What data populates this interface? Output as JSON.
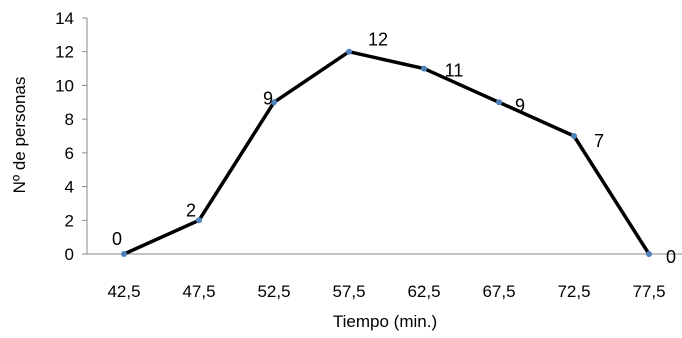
{
  "chart_data": {
    "type": "line",
    "title": "",
    "xlabel": "Tiempo (min.)",
    "ylabel": "Nº de personas",
    "categories": [
      "42,5",
      "47,5",
      "52,5",
      "57,5",
      "62,5",
      "67,5",
      "72,5",
      "77,5"
    ],
    "series": [
      {
        "values": [
          0,
          2,
          9,
          12,
          11,
          9,
          7,
          0
        ],
        "data_labels": [
          "0",
          "2",
          "9",
          "12",
          "11",
          "9",
          "7",
          "0"
        ]
      }
    ],
    "ylim": [
      0,
      14
    ],
    "yticks": [
      0,
      2,
      4,
      6,
      8,
      10,
      12,
      14
    ],
    "grid": false,
    "legend": "none",
    "colors": {
      "line": "#000000",
      "marker": "#4F81BD",
      "axis": "#888888"
    }
  }
}
